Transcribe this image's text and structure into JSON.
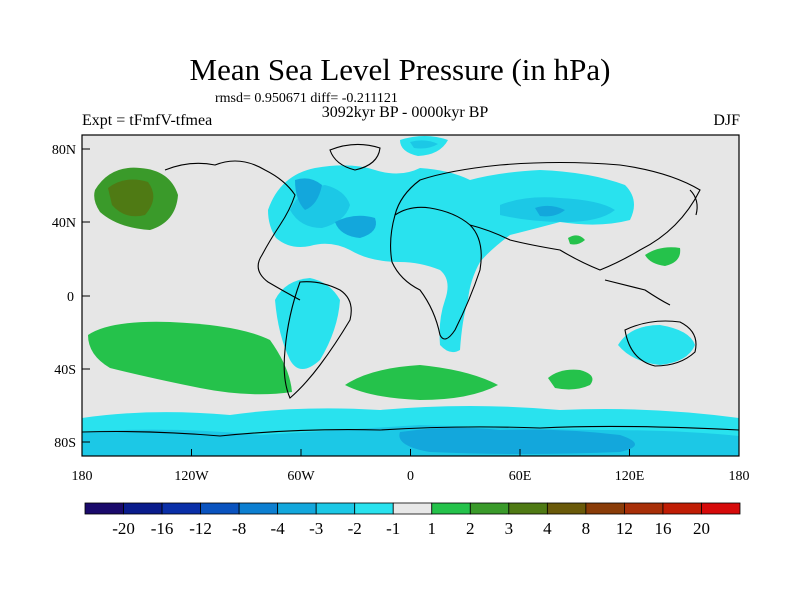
{
  "title": "Mean Sea Level Pressure (in hPa)",
  "stats": "rmsd= 0.950671 diff= -0.211121",
  "experiment": "Expt = tFmfV-tfmea",
  "period": "3092kyr BP - 0000kyr BP",
  "season": "DJF",
  "lat_labels": [
    "80N",
    "40N",
    "0",
    "40S",
    "80S"
  ],
  "lon_labels": [
    "180",
    "120W",
    "60W",
    "0",
    "60E",
    "120E",
    "180"
  ],
  "colorbar": {
    "colors": [
      "#1a0a6b",
      "#0a1c8c",
      "#0a2fa8",
      "#0a53bf",
      "#0d7fd1",
      "#13a7dc",
      "#1cc8e6",
      "#29e2ee",
      "#e8e8e8",
      "#25c24b",
      "#3a9a2a",
      "#4f7a14",
      "#6a5a0a",
      "#8a3c08",
      "#a82f08",
      "#c01d05",
      "#d60a0a"
    ],
    "labels": [
      "-20",
      "-16",
      "-12",
      "-8",
      "-4",
      "-3",
      "-2",
      "-1",
      "1",
      "2",
      "3",
      "4",
      "8",
      "12",
      "16",
      "20"
    ]
  },
  "colors": {
    "background": "#e6e6e6",
    "light_cyan": "#29e2ee",
    "cyan": "#1cc8e6",
    "blue": "#13a7dc",
    "green": "#25c24b",
    "dark_green": "#3a9a2a",
    "brown": "#4f7a14"
  }
}
